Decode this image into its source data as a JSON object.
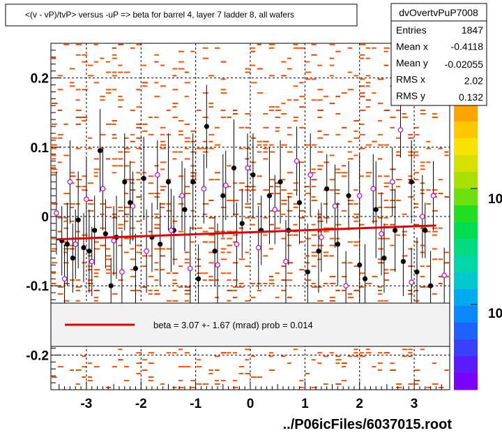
{
  "title": "<(v - vP)/tvP> versus  -uP => beta for barrel 4, layer 7 ladder 8, all wafers",
  "footer": "../P06icFiles/6037015.root",
  "stats": {
    "name": "dvOvertvPuP7008",
    "rows": [
      {
        "label": "Entries",
        "value": "1847"
      },
      {
        "label": "Mean x",
        "value": "-0.4118"
      },
      {
        "label": "Mean y",
        "value": "-0.02055"
      },
      {
        "label": "RMS x",
        "value": "2.02"
      },
      {
        "label": "RMS y",
        "value": "0.132"
      }
    ]
  },
  "legend": {
    "label": "beta =    3.07 +-  1.67 (mrad) prob = 0.014",
    "line_color": "#e00000"
  },
  "palette": {
    "labels": [
      "10",
      "10"
    ]
  },
  "chart_data": {
    "type": "scatter",
    "xlim": [
      -3.65,
      3.65
    ],
    "ylim": [
      -0.25,
      0.25
    ],
    "x_ticks": [
      {
        "value": -3,
        "label": "-3"
      },
      {
        "value": -2,
        "label": "-2"
      },
      {
        "value": -1,
        "label": "-1"
      },
      {
        "value": 0,
        "label": "0"
      },
      {
        "value": 1,
        "label": "1"
      },
      {
        "value": 2,
        "label": "2"
      },
      {
        "value": 3,
        "label": "3"
      }
    ],
    "y_ticks": [
      {
        "value": 0.2,
        "label": "0.2"
      },
      {
        "value": 0.1,
        "label": "0.1"
      },
      {
        "value": 0,
        "label": "0"
      },
      {
        "value": -0.1,
        "label": "-0.1"
      },
      {
        "value": -0.2,
        "label": "-0.2"
      }
    ],
    "grid": true,
    "fit_line": {
      "x": [
        -3.55,
        3.4
      ],
      "y": [
        -0.033,
        -0.013
      ],
      "color": "#e00000"
    },
    "series": [
      {
        "kind": "profile-black",
        "color": "#000000",
        "points": [
          {
            "x": -3.45,
            "y": -0.035,
            "err": 0.05
          },
          {
            "x": -3.35,
            "y": -0.04,
            "err": 0.06
          },
          {
            "x": -3.25,
            "y": -0.06,
            "err": 0.05
          },
          {
            "x": -3.15,
            "y": -0.005,
            "err": 0.07
          },
          {
            "x": -3.05,
            "y": -0.045,
            "err": 0.05
          },
          {
            "x": -2.95,
            "y": -0.05,
            "err": 0.06
          },
          {
            "x": -2.85,
            "y": -0.02,
            "err": 0.05
          },
          {
            "x": -2.75,
            "y": 0.095,
            "err": 0.06
          },
          {
            "x": -2.65,
            "y": -0.025,
            "err": 0.05
          },
          {
            "x": -2.55,
            "y": -0.1,
            "err": 0.04
          },
          {
            "x": -2.45,
            "y": -0.03,
            "err": 0.06
          },
          {
            "x": -2.3,
            "y": 0.05,
            "err": 0.07
          },
          {
            "x": -2.2,
            "y": 0.02,
            "err": 0.06
          },
          {
            "x": -2.1,
            "y": -0.075,
            "err": 0.05
          },
          {
            "x": -1.95,
            "y": 0.055,
            "err": 0.06
          },
          {
            "x": -1.8,
            "y": -0.03,
            "err": 0.05
          },
          {
            "x": -1.65,
            "y": -0.04,
            "err": 0.06
          },
          {
            "x": -1.5,
            "y": 0.05,
            "err": 0.07
          },
          {
            "x": -1.4,
            "y": -0.02,
            "err": 0.05
          },
          {
            "x": -1.2,
            "y": 0.01,
            "err": 0.06
          },
          {
            "x": -1.05,
            "y": 0.05,
            "err": 0.07
          },
          {
            "x": -0.95,
            "y": -0.09,
            "err": 0.05
          },
          {
            "x": -0.8,
            "y": 0.13,
            "err": 0.06
          },
          {
            "x": -0.65,
            "y": -0.05,
            "err": 0.05
          },
          {
            "x": -0.5,
            "y": 0.03,
            "err": 0.06
          },
          {
            "x": -0.3,
            "y": 0.07,
            "err": 0.07
          },
          {
            "x": -0.15,
            "y": -0.01,
            "err": 0.05
          },
          {
            "x": 0.05,
            "y": 0.06,
            "err": 0.06
          },
          {
            "x": 0.2,
            "y": -0.02,
            "err": 0.05
          },
          {
            "x": 0.35,
            "y": 0.03,
            "err": 0.07
          },
          {
            "x": 0.55,
            "y": 0.05,
            "err": 0.06
          },
          {
            "x": 0.7,
            "y": -0.02,
            "err": 0.05
          },
          {
            "x": 0.9,
            "y": 0.02,
            "err": 0.06
          },
          {
            "x": 1.05,
            "y": -0.08,
            "err": 0.07
          },
          {
            "x": 1.25,
            "y": -0.05,
            "err": 0.06
          },
          {
            "x": 1.4,
            "y": 0.04,
            "err": 0.05
          },
          {
            "x": 1.6,
            "y": -0.04,
            "err": 0.06
          },
          {
            "x": 1.8,
            "y": 0.03,
            "err": 0.05
          },
          {
            "x": 2.0,
            "y": -0.07,
            "err": 0.06
          },
          {
            "x": 2.1,
            "y": -0.09,
            "err": 0.05
          },
          {
            "x": 2.3,
            "y": 0.01,
            "err": 0.07
          },
          {
            "x": 2.45,
            "y": -0.06,
            "err": 0.05
          },
          {
            "x": 2.65,
            "y": -0.02,
            "err": 0.06
          },
          {
            "x": 2.8,
            "y": -0.065,
            "err": 0.05
          },
          {
            "x": 2.95,
            "y": 0.05,
            "err": 0.06
          },
          {
            "x": 3.05,
            "y": -0.08,
            "err": 0.05
          },
          {
            "x": 3.2,
            "y": -0.02,
            "err": 0.04
          },
          {
            "x": 3.3,
            "y": -0.1,
            "err": 0.05
          }
        ]
      },
      {
        "kind": "profile-magenta",
        "color": "#d000d0",
        "points": [
          {
            "x": -3.55,
            "y": 0.005,
            "err": 0.06
          },
          {
            "x": -3.4,
            "y": -0.09,
            "err": 0.05
          },
          {
            "x": -3.3,
            "y": 0.05,
            "err": 0.06
          },
          {
            "x": -3.2,
            "y": -0.04,
            "err": 0.05
          },
          {
            "x": -3.0,
            "y": 0.025,
            "err": 0.06
          },
          {
            "x": -2.9,
            "y": -0.065,
            "err": 0.05
          },
          {
            "x": -2.7,
            "y": 0.04,
            "err": 0.06
          },
          {
            "x": -2.5,
            "y": -0.035,
            "err": 0.05
          },
          {
            "x": -2.35,
            "y": -0.08,
            "err": 0.06
          },
          {
            "x": -2.15,
            "y": 0.015,
            "err": 0.05
          },
          {
            "x": -1.9,
            "y": -0.05,
            "err": 0.06
          },
          {
            "x": -1.7,
            "y": 0.06,
            "err": 0.05
          },
          {
            "x": -1.45,
            "y": -0.02,
            "err": 0.06
          },
          {
            "x": -1.25,
            "y": 0.03,
            "err": 0.05
          },
          {
            "x": -1.1,
            "y": -0.075,
            "err": 0.06
          },
          {
            "x": -0.85,
            "y": 0.04,
            "err": 0.05
          },
          {
            "x": -0.6,
            "y": -0.07,
            "err": 0.06
          },
          {
            "x": -0.45,
            "y": 0.045,
            "err": 0.05
          },
          {
            "x": -0.25,
            "y": -0.04,
            "err": 0.06
          },
          {
            "x": -0.05,
            "y": 0.07,
            "err": 0.05
          },
          {
            "x": 0.15,
            "y": -0.045,
            "err": 0.06
          },
          {
            "x": 0.45,
            "y": 0.01,
            "err": 0.05
          },
          {
            "x": 0.65,
            "y": -0.065,
            "err": 0.06
          },
          {
            "x": 0.85,
            "y": 0.08,
            "err": 0.05
          },
          {
            "x": 1.1,
            "y": 0.06,
            "err": 0.06
          },
          {
            "x": 1.3,
            "y": -0.03,
            "err": 0.05
          },
          {
            "x": 1.55,
            "y": 0.015,
            "err": 0.06
          },
          {
            "x": 1.75,
            "y": -0.1,
            "err": 0.05
          },
          {
            "x": 2.0,
            "y": 0.03,
            "err": 0.06
          },
          {
            "x": 2.25,
            "y": 0.04,
            "err": 0.05
          },
          {
            "x": 2.4,
            "y": -0.025,
            "err": 0.06
          },
          {
            "x": 2.6,
            "y": 0.05,
            "err": 0.05
          },
          {
            "x": 2.75,
            "y": 0.125,
            "err": 0.04
          },
          {
            "x": 2.95,
            "y": -0.095,
            "err": 0.05
          },
          {
            "x": 3.15,
            "y": 0.0,
            "err": 0.06
          },
          {
            "x": 3.35,
            "y": 0.03,
            "err": 0.05
          },
          {
            "x": 3.55,
            "y": -0.085,
            "err": 0.04
          }
        ]
      }
    ]
  }
}
